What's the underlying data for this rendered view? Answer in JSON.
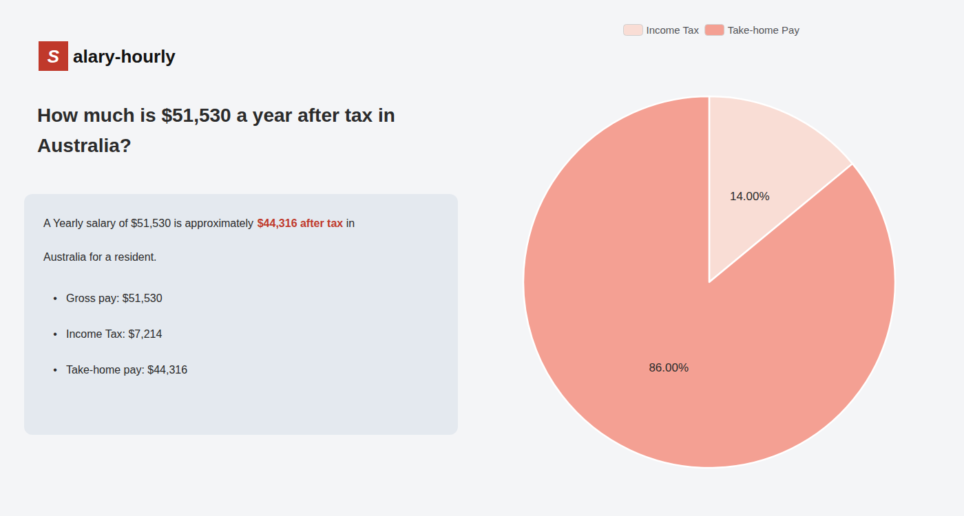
{
  "chart_data": {
    "type": "pie",
    "title": "How much is $51,530 a year after tax in\nAustralia?",
    "annotations": [
      [
        {
          "text": "S",
          "color": "#c0392b"
        },
        {
          "text": "alary-hourly"
        }
      ],
      [
        {
          "text": "A Yearly salary of $51,530 is approximately "
        },
        {
          "text": "$44,316 after tax",
          "color": "#c0392b"
        },
        {
          "text": " in"
        }
      ],
      [
        {
          "text": "Australia for a resident."
        }
      ],
      [
        {
          "text": "•"
        },
        {
          "text": "Gross pay: $51,530"
        }
      ],
      [
        {
          "text": "•"
        },
        {
          "text": "Income Tax: $7,214"
        }
      ],
      [
        {
          "text": "•"
        },
        {
          "text": "Take-home pay: $44,316"
        }
      ]
    ],
    "categories": [
      "Income Tax",
      "Take-home Pay"
    ],
    "values": [
      14.0,
      86.0
    ],
    "value_labels": [
      "14.00%",
      "86.00%"
    ],
    "colors": [
      "#f9ddd5",
      "#f4a093"
    ],
    "legend": "top",
    "data_labels": true
  }
}
